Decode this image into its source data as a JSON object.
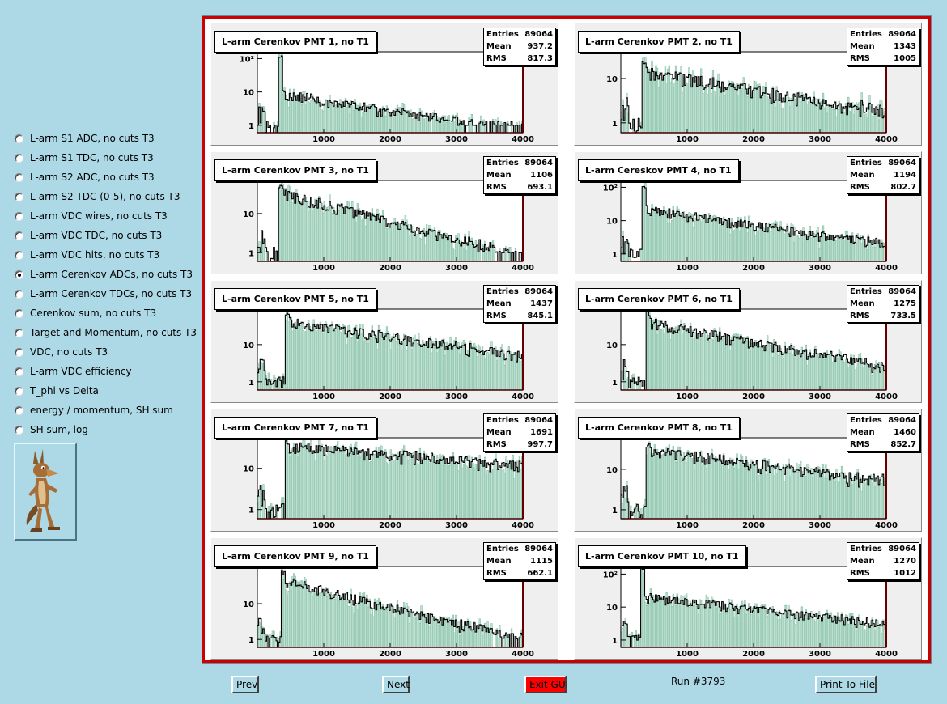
{
  "sidebar": {
    "options": [
      {
        "label": "L-arm S1 ADC, no cuts T3",
        "checked": false
      },
      {
        "label": "L-arm S1 TDC, no cuts T3",
        "checked": false
      },
      {
        "label": "L-arm S2 ADC, no cuts T3",
        "checked": false
      },
      {
        "label": "L-arm S2 TDC (0-5), no cuts T3",
        "checked": false
      },
      {
        "label": "L-arm VDC wires, no cuts T3",
        "checked": false
      },
      {
        "label": "L-arm VDC TDC, no cuts T3",
        "checked": false
      },
      {
        "label": "L-arm VDC hits, no cuts T3",
        "checked": false
      },
      {
        "label": "L-arm Cerenkov ADCs, no cuts T3",
        "checked": true
      },
      {
        "label": "L-arm Cerenkov TDCs, no cuts T3",
        "checked": false
      },
      {
        "label": "Cerenkov sum, no cuts T3",
        "checked": false
      },
      {
        "label": "Target and Momentum, no cuts T3",
        "checked": false
      },
      {
        "label": "VDC, no cuts T3",
        "checked": false
      },
      {
        "label": "L-arm VDC efficiency",
        "checked": false
      },
      {
        "label": "T_phi vs Delta",
        "checked": false
      },
      {
        "label": "energy / momentum, SH sum",
        "checked": false
      },
      {
        "label": "SH sum, log",
        "checked": false
      }
    ],
    "logo_icon": "coyote-logo-icon"
  },
  "stats_labels": {
    "entries": "Entries",
    "mean": "Mean",
    "rms": "RMS"
  },
  "colors": {
    "frame_border": "#cc0000",
    "hist_fill": "#7fbfa3",
    "hist_line": "#000000",
    "cut_line": "#cc0000",
    "background": "#add8e6"
  },
  "chart_data": [
    {
      "type": "bar",
      "title": "L-arm Cerenkov PMT 1, no T1",
      "entries": "89064",
      "mean": "937.2",
      "rms": "817.3",
      "xticks": [
        "1000",
        "2000",
        "3000",
        "4000"
      ],
      "yticks": [
        "1",
        "10",
        "10²"
      ],
      "xlim": [
        0,
        4000
      ],
      "ylog": true,
      "ymax": 160,
      "peak": 130,
      "pedestal": 350,
      "shoulder": 9,
      "decay": 1200,
      "floor": 0.7
    },
    {
      "type": "bar",
      "title": "L-arm Cerenkov PMT 2, no T1",
      "entries": "89064",
      "mean": "1343",
      "rms": "1005",
      "xticks": [
        "1000",
        "2000",
        "3000",
        "4000"
      ],
      "yticks": [
        "1",
        "10"
      ],
      "xlim": [
        0,
        4000
      ],
      "ylog": true,
      "ymax": 40,
      "peak": 25,
      "pedestal": 350,
      "shoulder": 14,
      "decay": 1500,
      "floor": 1.2
    },
    {
      "type": "bar",
      "title": "L-arm Cerenkov PMT 3, no T1",
      "entries": "89064",
      "mean": "1106",
      "rms": "693.1",
      "xticks": [
        "1000",
        "2000",
        "3000",
        "4000"
      ],
      "yticks": [
        "1",
        "10"
      ],
      "xlim": [
        0,
        4000
      ],
      "ylog": true,
      "ymax": 70,
      "peak": 60,
      "pedestal": 350,
      "shoulder": 35,
      "decay": 900,
      "floor": 0.6
    },
    {
      "type": "bar",
      "title": "L-arm Cereskov PMT 4, no T1",
      "entries": "89064",
      "mean": "1194",
      "rms": "802.7",
      "xticks": [
        "1000",
        "2000",
        "3000",
        "4000"
      ],
      "yticks": [
        "1",
        "10",
        "10²"
      ],
      "xlim": [
        0,
        4000
      ],
      "ylog": true,
      "ymax": 160,
      "peak": 120,
      "pedestal": 350,
      "shoulder": 22,
      "decay": 1400,
      "floor": 0.8
    },
    {
      "type": "bar",
      "title": "L-arm Cerenkov PMT 5, no T1",
      "entries": "89064",
      "mean": "1437",
      "rms": "845.1",
      "xticks": [
        "1000",
        "2000",
        "3000",
        "4000"
      ],
      "yticks": [
        "1",
        "10"
      ],
      "xlim": [
        0,
        4000
      ],
      "ylog": true,
      "ymax": 90,
      "peak": 80,
      "pedestal": 450,
      "shoulder": 40,
      "decay": 1600,
      "floor": 1.2
    },
    {
      "type": "bar",
      "title": "L-arm Cerenkov PMT 6, no T1",
      "entries": "89064",
      "mean": "1275",
      "rms": "733.5",
      "xticks": [
        "1000",
        "2000",
        "3000",
        "4000"
      ],
      "yticks": [
        "1",
        "10"
      ],
      "xlim": [
        0,
        4000
      ],
      "ylog": true,
      "ymax": 90,
      "peak": 85,
      "pedestal": 400,
      "shoulder": 40,
      "decay": 1200,
      "floor": 1.2
    },
    {
      "type": "bar",
      "title": "L-arm Cerenkov PMT 7, no T1",
      "entries": "89064",
      "mean": "1691",
      "rms": "997.7",
      "xticks": [
        "1000",
        "2000",
        "3000",
        "4000"
      ],
      "yticks": [
        "1",
        "10"
      ],
      "xlim": [
        0,
        4000
      ],
      "ylog": true,
      "ymax": 55,
      "peak": 50,
      "pedestal": 450,
      "shoulder": 30,
      "decay": 3000,
      "floor": 6
    },
    {
      "type": "bar",
      "title": "L-arm Cerenkov PMT 8, no T1",
      "entries": "89064",
      "mean": "1460",
      "rms": "852.7",
      "xticks": [
        "1000",
        "2000",
        "3000",
        "4000"
      ],
      "yticks": [
        "1",
        "10"
      ],
      "xlim": [
        0,
        4000
      ],
      "ylog": true,
      "ymax": 60,
      "peak": 50,
      "pedestal": 400,
      "shoulder": 30,
      "decay": 1800,
      "floor": 2
    },
    {
      "type": "bar",
      "title": "L-arm Cerenkov PMT 9, no T1",
      "entries": "89064",
      "mean": "1115",
      "rms": "662.1",
      "xticks": [
        "1000",
        "2000",
        "3000",
        "4000"
      ],
      "yticks": [
        "1",
        "10"
      ],
      "xlim": [
        0,
        4000
      ],
      "ylog": true,
      "ymax": 110,
      "peak": 90,
      "pedestal": 380,
      "shoulder": 45,
      "decay": 900,
      "floor": 0.6
    },
    {
      "type": "bar",
      "title": "L-arm Cerenkov PMT 10, no T1",
      "entries": "89064",
      "mean": "1270",
      "rms": "1012",
      "xticks": [
        "1000",
        "2000",
        "3000",
        "4000"
      ],
      "yticks": [
        "1",
        "10",
        "10²"
      ],
      "xlim": [
        0,
        4000
      ],
      "ylog": true,
      "ymax": 170,
      "peak": 150,
      "pedestal": 330,
      "shoulder": 20,
      "decay": 1800,
      "floor": 1.2
    }
  ],
  "buttons": {
    "prev": "Prev",
    "next": "Next",
    "exit": "Exit GUI",
    "print": "Print To File"
  },
  "run_label": "Run #3793"
}
